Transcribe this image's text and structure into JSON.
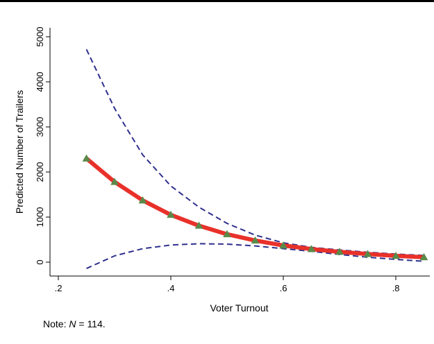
{
  "note": {
    "prefix": "Note: ",
    "n_symbol": "N",
    "suffix": " = 114."
  },
  "colors": {
    "prediction": "#e8312a",
    "markers": "#5a8a4a",
    "ci": "#2d2f8c",
    "frame": "#000000"
  },
  "chart_data": {
    "type": "line",
    "title": "",
    "xlabel": "Voter Turnout",
    "ylabel": "Predicted Number of Trailers",
    "xlim": [
      0.25,
      0.85
    ],
    "ylim": [
      -150,
      5050
    ],
    "xticks": [
      0.2,
      0.4,
      0.6,
      0.8
    ],
    "xtick_labels": [
      ".2",
      ".4",
      ".6",
      ".8"
    ],
    "yticks": [
      0,
      1000,
      2000,
      3000,
      4000,
      5000
    ],
    "ytick_labels": [
      "0",
      "1000",
      "2000",
      "3000",
      "4000",
      "5000"
    ],
    "grid": false,
    "x": [
      0.25,
      0.3,
      0.35,
      0.4,
      0.45,
      0.5,
      0.55,
      0.6,
      0.65,
      0.7,
      0.75,
      0.8,
      0.85
    ],
    "series": [
      {
        "role": "prediction",
        "style": "solid-thick-markers",
        "values": [
          2300,
          1780,
          1370,
          1050,
          810,
          620,
          480,
          370,
          290,
          230,
          180,
          140,
          110
        ]
      },
      {
        "role": "upper-ci",
        "style": "dashed",
        "values": [
          4720,
          3410,
          2380,
          1690,
          1220,
          860,
          600,
          430,
          330,
          270,
          220,
          180,
          150
        ]
      },
      {
        "role": "lower-ci",
        "style": "dashed",
        "values": [
          -140,
          140,
          300,
          380,
          410,
          400,
          360,
          300,
          240,
          170,
          110,
          60,
          20
        ]
      }
    ]
  }
}
